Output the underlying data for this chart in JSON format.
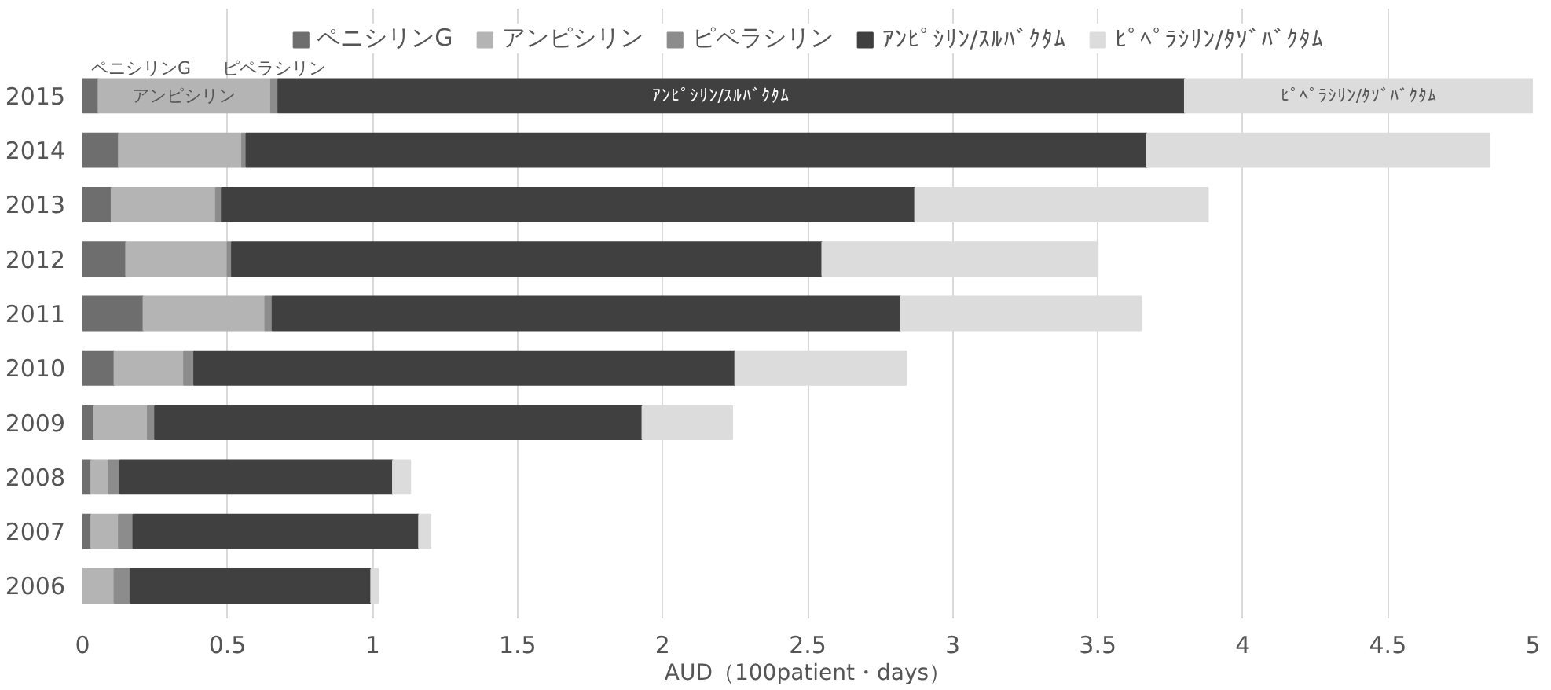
{
  "chart_data": {
    "type": "bar",
    "orientation": "horizontal",
    "stacked": true,
    "categories": [
      "2015",
      "2014",
      "2013",
      "2012",
      "2011",
      "2010",
      "2009",
      "2008",
      "2007",
      "2006"
    ],
    "series": [
      {
        "name": "ペニシリンG",
        "color": "#6e6e6e",
        "values": [
          0.055,
          0.125,
          0.1,
          0.15,
          0.21,
          0.11,
          0.04,
          0.03,
          0.03,
          0
        ]
      },
      {
        "name": "アンピシリン",
        "color": "#b4b4b4",
        "values": [
          0.595,
          0.425,
          0.36,
          0.35,
          0.42,
          0.24,
          0.185,
          0.06,
          0.095,
          0.11
        ]
      },
      {
        "name": "ピペラシリン",
        "color": "#8c8c8c",
        "values": [
          0.025,
          0.015,
          0.02,
          0.015,
          0.025,
          0.035,
          0.025,
          0.04,
          0.05,
          0.055
        ]
      },
      {
        "name": "ｱﾝﾋﾟｼﾘﾝ/ｽﾙﾊﾞｸﾀﾑ",
        "color": "#404040",
        "values": [
          3.125,
          3.105,
          2.39,
          2.035,
          2.165,
          1.865,
          1.68,
          0.94,
          0.985,
          0.83
        ]
      },
      {
        "name": "ﾋﾟﾍﾟﾗｼﾘﾝ/ﾀｿﾞﾊﾞｸﾀﾑ",
        "color": "#dcdcdc",
        "values": [
          1.2,
          1.18,
          1.01,
          0.95,
          0.83,
          0.59,
          0.31,
          0.06,
          0.04,
          0.025
        ]
      }
    ],
    "xlabel": "AUD（100patient・days）",
    "xlim": [
      0,
      5
    ],
    "xticks": [
      0,
      0.5,
      1,
      1.5,
      2,
      2.5,
      3,
      3.5,
      4,
      4.5,
      5
    ],
    "grid": "x",
    "legend": "top",
    "annotations": [
      {
        "text": "ペニシリンG",
        "x": 0.03,
        "y": "2015"
      },
      {
        "text": "アンピシリン",
        "x": 0.35,
        "y": "2015"
      },
      {
        "text": "ピペラシリン",
        "x": 0.66,
        "y": "2015"
      },
      {
        "text": "ｱﾝﾋﾟｼﾘﾝ/ｽﾙﾊﾞｸﾀﾑ",
        "x": 2.2,
        "y": "2015"
      },
      {
        "text": "ﾋﾟﾍﾟﾗｼﾘﾝ/ﾀｿﾞﾊﾞｸﾀﾑ",
        "x": 4.4,
        "y": "2015"
      }
    ]
  }
}
